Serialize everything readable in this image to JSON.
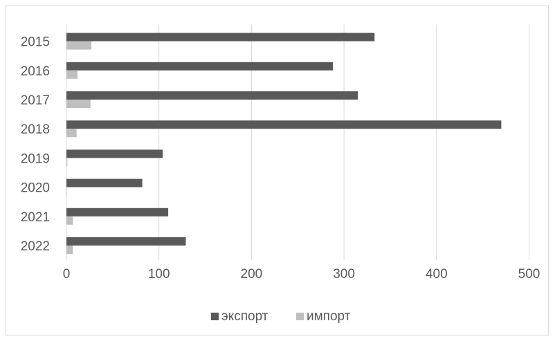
{
  "chart_data": {
    "type": "bar",
    "orientation": "horizontal",
    "categories": [
      "2015",
      "2016",
      "2017",
      "2018",
      "2019",
      "2020",
      "2021",
      "2022"
    ],
    "series": [
      {
        "name": "экспорт",
        "values": [
          333,
          288,
          315,
          470,
          104,
          82,
          110,
          129
        ],
        "color": "#595959"
      },
      {
        "name": "импорт",
        "values": [
          27,
          12,
          26,
          11,
          1,
          0.5,
          7,
          7
        ],
        "color": "#bfbfbf"
      }
    ],
    "x_ticks": [
      "0",
      "100",
      "200",
      "300",
      "400",
      "500"
    ],
    "xlim": [
      0,
      500
    ],
    "title": "",
    "xlabel": "",
    "ylabel": "",
    "grid": true,
    "legend_position": "bottom"
  }
}
